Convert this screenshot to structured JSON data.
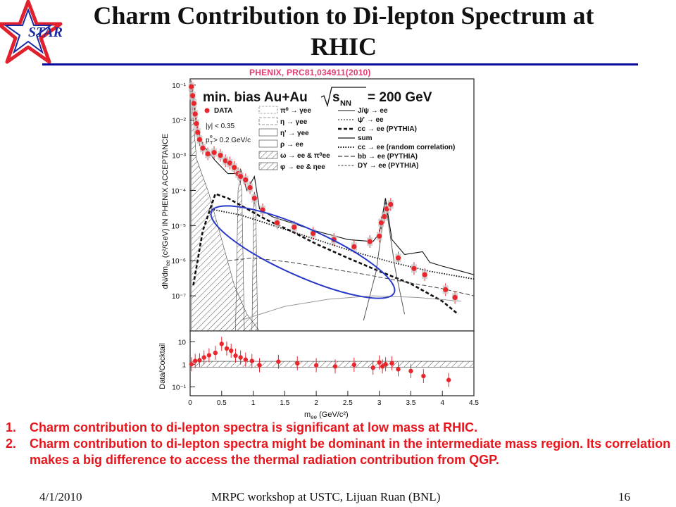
{
  "header": {
    "title_line1": "Charm Contribution to Di-lepton Spectrum at",
    "title_line2": "RHIC",
    "logo_text": "STAR",
    "citation": "PHENIX, PRC81,034911(2010)"
  },
  "bullets": [
    {
      "num": "1.",
      "text": "Charm contribution to di-lepton spectra is significant at low mass at RHIC."
    },
    {
      "num": "2.",
      "text": "Charm contribution to di-lepton spectra might be dominant in the intermediate mass region. Its correlation makes a big difference to access the thermal radiation contribution from QGP."
    }
  ],
  "footer": {
    "date": "4/1/2010",
    "talk": "MRPC workshop at USTC, Lijuan Ruan (BNL)",
    "page": "16"
  },
  "colors": {
    "title_rule": "#0a0aa0",
    "bullet_text": "#e8141c",
    "citation": "#e03c6e",
    "data_points": "#e8262c",
    "ellipse": "#2838c8",
    "logo_star": "#e0202c"
  },
  "chart_data": [
    {
      "type": "scatter",
      "panel": "upper",
      "title": "min. bias Au+Au",
      "title_energy_prefix": "s",
      "title_energy_sub": "NN",
      "title_energy_value": "= 200 GeV",
      "ylabel_line1": "dN/dm",
      "ylabel_sub": "ee",
      "ylabel_line2": "(c²/GeV) IN PHENIX ACCEPTANCE",
      "y_scale": "log",
      "ylim": [
        1e-08,
        0.15
      ],
      "xlim": [
        0,
        4.5
      ],
      "y_tick_labels": [
        "10⁻¹",
        "10⁻²",
        "10⁻³",
        "10⁻⁴",
        "10⁻⁵",
        "10⁻⁶",
        "10⁻⁷"
      ],
      "legend_left": {
        "data_label": "DATA",
        "cut1": "|y| < 0.35",
        "cut2_prefix": "p",
        "cut2_suffix": " > 0.2 GeV/c"
      },
      "legend_mid": [
        "π⁰ → γee",
        "η → γee",
        "η' → γee",
        "ρ → ee",
        "ω → ee & π⁰ee",
        "φ → ee & ηee"
      ],
      "legend_right": [
        "J/ψ → ee",
        "ψ' → ee",
        "cc → ee (PYTHIA)",
        "sum",
        "cc → ee (random correlation)",
        "bb → ee (PYTHIA)",
        "DY → ee (PYTHIA)"
      ],
      "series": [
        {
          "name": "DATA",
          "x": [
            0.02,
            0.04,
            0.06,
            0.08,
            0.1,
            0.12,
            0.15,
            0.2,
            0.28,
            0.38,
            0.48,
            0.56,
            0.63,
            0.7,
            0.76,
            0.8,
            0.88,
            0.95,
            1.02,
            1.15,
            1.38,
            1.65,
            1.95,
            2.28,
            2.6,
            2.85,
            3.0,
            3.03,
            3.08,
            3.12,
            3.18,
            3.3,
            3.55,
            3.72,
            4.05,
            4.2
          ],
          "y": [
            0.09,
            0.05,
            0.03,
            0.015,
            0.008,
            0.0045,
            0.0028,
            0.0016,
            0.0011,
            0.0012,
            0.001,
            0.0007,
            0.0006,
            0.00045,
            0.0003,
            0.00025,
            0.0002,
            0.00012,
            6e-05,
            2.8e-05,
            1.2e-05,
            9e-06,
            6e-06,
            4e-06,
            2.5e-06,
            3.5e-06,
            5e-06,
            1.2e-05,
            1.8e-05,
            3e-05,
            4e-05,
            1.2e-06,
            6e-07,
            4e-07,
            1.5e-07,
            9e-08
          ]
        },
        {
          "name": "cc → ee (PYTHIA)",
          "x": [
            0.05,
            0.2,
            0.4,
            0.6,
            0.9,
            1.2,
            1.6,
            2.0,
            2.5,
            3.0,
            3.5,
            4.0,
            4.25
          ],
          "y": [
            2e-07,
            7e-06,
            8e-05,
            6e-05,
            3e-05,
            1.5e-05,
            7e-06,
            3e-06,
            1.2e-06,
            5e-07,
            2.2e-07,
            7e-08,
            3e-08
          ]
        },
        {
          "name": "sum",
          "x": [
            0.02,
            0.1,
            0.2,
            0.4,
            0.6,
            0.76,
            0.8,
            0.9,
            1.02,
            1.1,
            1.3,
            1.6,
            2.0,
            2.5,
            2.9,
            3.0,
            3.097,
            3.2,
            3.4,
            3.686,
            3.8,
            4.0,
            4.3,
            4.5
          ],
          "y": [
            0.09,
            0.007,
            0.002,
            0.0007,
            0.0003,
            0.0003,
            0.0004,
            0.0001,
            0.00025,
            3e-05,
            1.8e-05,
            1.2e-05,
            7e-06,
            4e-06,
            3.5e-06,
            6e-06,
            6e-05,
            4e-06,
            1.5e-06,
            1.8e-06,
            9e-07,
            7e-07,
            5e-07,
            4e-07
          ]
        }
      ]
    },
    {
      "type": "scatter",
      "panel": "lower",
      "ylabel": "Data/Cocktail",
      "xlabel_prefix": "m",
      "xlabel_sub": "ee",
      "xlabel_suffix": " (GeV/c²)",
      "y_scale": "log",
      "ylim": [
        0.04,
        30
      ],
      "xlim": [
        0,
        4.5
      ],
      "x_ticks": [
        "0",
        "0.5",
        "1",
        "1.5",
        "2",
        "2.5",
        "3",
        "3.5",
        "4",
        "4.5"
      ],
      "y_tick_labels": [
        "10",
        "1",
        "10⁻¹"
      ],
      "series": [
        {
          "name": "Data/Cocktail",
          "x": [
            0.02,
            0.08,
            0.15,
            0.22,
            0.3,
            0.4,
            0.5,
            0.58,
            0.65,
            0.72,
            0.8,
            0.88,
            0.98,
            1.1,
            1.4,
            1.7,
            2.0,
            2.3,
            2.6,
            2.9,
            3.0,
            3.05,
            3.1,
            3.2,
            3.3,
            3.5,
            3.7,
            4.1
          ],
          "y": [
            1.0,
            1.4,
            1.5,
            2.0,
            2.5,
            3.2,
            8.0,
            5.0,
            4.0,
            2.4,
            2.0,
            1.6,
            1.4,
            0.9,
            1.3,
            1.1,
            0.9,
            0.8,
            0.95,
            0.7,
            1.2,
            0.8,
            1.0,
            1.1,
            0.6,
            0.5,
            0.3,
            0.2
          ]
        }
      ]
    }
  ]
}
